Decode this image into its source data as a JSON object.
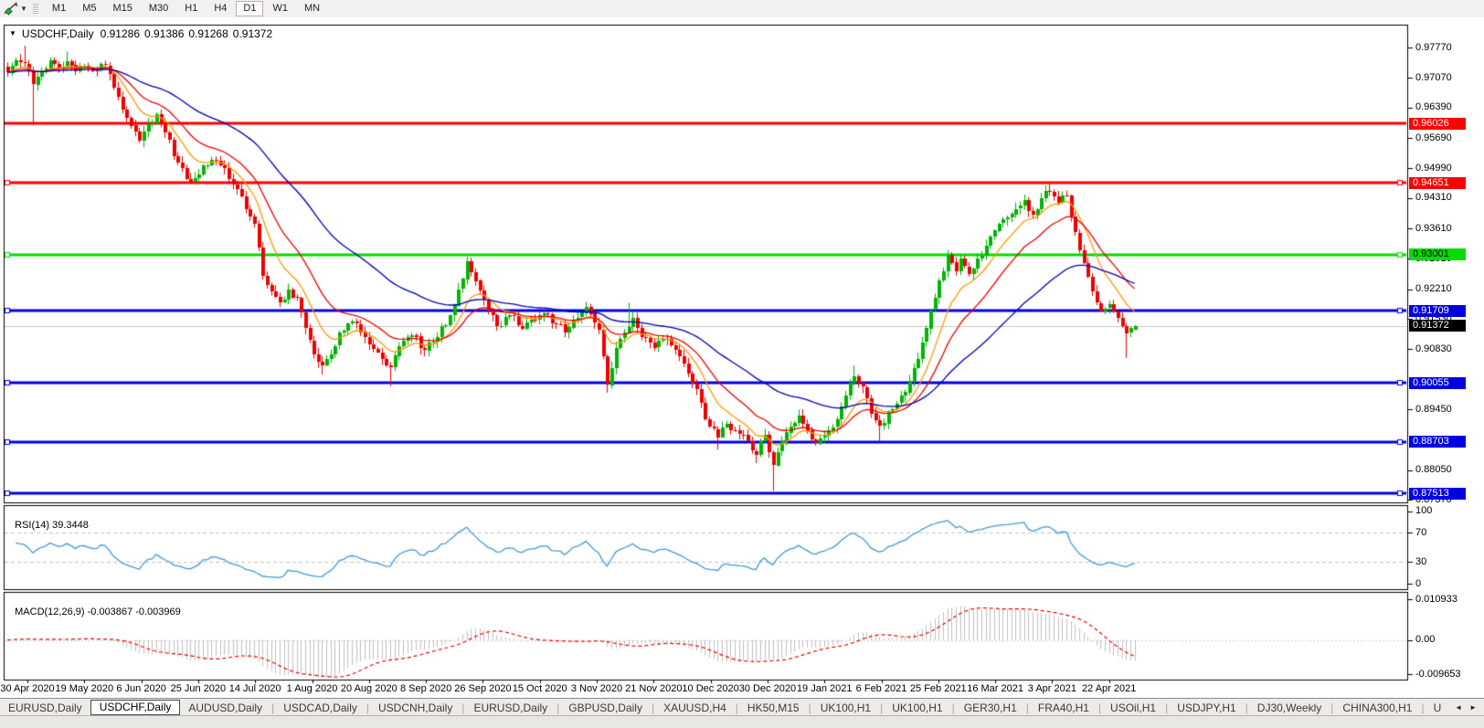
{
  "toolbar": {
    "dropdown_caret": "▼",
    "timeframes": [
      {
        "label": "M1",
        "active": false
      },
      {
        "label": "M5",
        "active": false
      },
      {
        "label": "M15",
        "active": false
      },
      {
        "label": "M30",
        "active": false
      },
      {
        "label": "H1",
        "active": false
      },
      {
        "label": "H4",
        "active": false
      },
      {
        "label": "D1",
        "active": true
      },
      {
        "label": "W1",
        "active": false
      },
      {
        "label": "MN",
        "active": false
      }
    ]
  },
  "chart": {
    "collapse_icon": "▼",
    "symbol_title": "USDCHF,Daily",
    "ohlc": {
      "open": "0.91286",
      "high": "0.91386",
      "low": "0.91268",
      "close": "0.91372"
    }
  },
  "chart_data": {
    "type": "candlestick-ohlc",
    "symbol": "USDCHF",
    "timeframe": "Daily",
    "visible_range": {
      "price_top": 0.98295,
      "price_bottom": 0.8733
    },
    "candle_count": 266,
    "colors": {
      "up": "#00B400",
      "down": "#EE0000",
      "rsi_line": "#3E9ADD",
      "macd_hist": "#C0C0C0",
      "macd_signal": "#EE0000",
      "current_line": "#C8C8C8",
      "grid_dash": "#C4C4C4"
    },
    "moving_averages": [
      {
        "period": 10,
        "method": "EMA",
        "color": "#FF9900"
      },
      {
        "period": 20,
        "method": "EMA",
        "color": "#EE0000"
      },
      {
        "period": 50,
        "method": "EMA",
        "color": "#0000B4"
      }
    ],
    "levels": [
      {
        "label": "0.96026",
        "price": 0.96026,
        "color": "#FF0000",
        "text": "#FFFFFF",
        "handles": false
      },
      {
        "label": "0.94651",
        "price": 0.94651,
        "color": "#FF0000",
        "text": "#FFFFFF",
        "handles": true
      },
      {
        "label": "0.93001",
        "price": 0.93001,
        "color": "#00DD00",
        "text": "#000000",
        "handles": true
      },
      {
        "label": "0.91709",
        "price": 0.91709,
        "color": "#0000E0",
        "text": "#FFFFFF",
        "handles": true
      },
      {
        "label": "0.90055",
        "price": 0.90055,
        "color": "#0000E0",
        "text": "#FFFFFF",
        "handles": true
      },
      {
        "label": "0.88703",
        "price": 0.88703,
        "color": "#0000E0",
        "text": "#FFFFFF",
        "handles": true
      },
      {
        "label": "0.87513",
        "price": 0.87513,
        "color": "#0000E0",
        "text": "#FFFFFF",
        "handles": true
      }
    ],
    "current_price": {
      "value": 0.91372,
      "label": "0.91372",
      "badge_bg": "#000000",
      "badge_fg": "#FFFFFF"
    },
    "price_axis_ticks": [
      "0.97770",
      "0.97070",
      "0.96390",
      "0.95690",
      "0.94990",
      "0.94310",
      "0.93610",
      "0.92910",
      "0.92210",
      "0.91530",
      "0.90830",
      "0.89450",
      "0.88050",
      "0.87370"
    ],
    "date_axis_labels": [
      "30 Apr 2020",
      "19 May 2020",
      "6 Jun 2020",
      "25 Jun 2020",
      "14 Jul 2020",
      "1 Aug 2020",
      "20 Aug 2020",
      "8 Sep 2020",
      "26 Sep 2020",
      "15 Oct 2020",
      "3 Nov 2020",
      "21 Nov 2020",
      "10 Dec 2020",
      "30 Dec 2020",
      "19 Jan 2021",
      "6 Feb 2021",
      "25 Feb 2021",
      "16 Mar 2021",
      "3 Apr 2021",
      "22 Apr 2021"
    ],
    "last_candle": {
      "open": 0.91286,
      "high": 0.91386,
      "low": 0.91268,
      "close": 0.91372
    },
    "close_anchors": [
      [
        0,
        0.972
      ],
      [
        2,
        0.9748
      ],
      [
        4,
        0.974
      ],
      [
        6,
        0.9692
      ],
      [
        8,
        0.9722
      ],
      [
        10,
        0.9748
      ],
      [
        12,
        0.973
      ],
      [
        14,
        0.9746
      ],
      [
        16,
        0.9722
      ],
      [
        18,
        0.9736
      ],
      [
        20,
        0.9724
      ],
      [
        23,
        0.9736
      ],
      [
        26,
        0.9663
      ],
      [
        28,
        0.9616
      ],
      [
        31,
        0.9562
      ],
      [
        33,
        0.9601
      ],
      [
        35,
        0.9624
      ],
      [
        37,
        0.9581
      ],
      [
        40,
        0.9512
      ],
      [
        43,
        0.9469
      ],
      [
        46,
        0.9506
      ],
      [
        48,
        0.9518
      ],
      [
        51,
        0.9499
      ],
      [
        54,
        0.9451
      ],
      [
        56,
        0.9405
      ],
      [
        58,
        0.9371
      ],
      [
        60,
        0.9251
      ],
      [
        62,
        0.9216
      ],
      [
        64,
        0.9191
      ],
      [
        66,
        0.9221
      ],
      [
        68,
        0.9201
      ],
      [
        70,
        0.9131
      ],
      [
        72,
        0.9071
      ],
      [
        74,
        0.9046
      ],
      [
        76,
        0.9071
      ],
      [
        78,
        0.9121
      ],
      [
        81,
        0.9146
      ],
      [
        84,
        0.9111
      ],
      [
        87,
        0.9076
      ],
      [
        90,
        0.9041
      ],
      [
        92,
        0.9091
      ],
      [
        95,
        0.9116
      ],
      [
        98,
        0.9081
      ],
      [
        101,
        0.9111
      ],
      [
        104,
        0.9161
      ],
      [
        106,
        0.9221
      ],
      [
        108,
        0.9286
      ],
      [
        110,
        0.9241
      ],
      [
        113,
        0.9171
      ],
      [
        115,
        0.9136
      ],
      [
        118,
        0.9161
      ],
      [
        121,
        0.9131
      ],
      [
        123,
        0.9151
      ],
      [
        126,
        0.9166
      ],
      [
        129,
        0.9141
      ],
      [
        131,
        0.9121
      ],
      [
        134,
        0.9156
      ],
      [
        136,
        0.9181
      ],
      [
        139,
        0.9128
      ],
      [
        141,
        0.9001
      ],
      [
        143,
        0.9086
      ],
      [
        145,
        0.9121
      ],
      [
        147,
        0.9156
      ],
      [
        149,
        0.9111
      ],
      [
        152,
        0.9086
      ],
      [
        155,
        0.9106
      ],
      [
        157,
        0.9081
      ],
      [
        159,
        0.9051
      ],
      [
        162,
        0.8991
      ],
      [
        164,
        0.8921
      ],
      [
        167,
        0.8881
      ],
      [
        169,
        0.8911
      ],
      [
        171,
        0.8896
      ],
      [
        174,
        0.8871
      ],
      [
        176,
        0.8841
      ],
      [
        178,
        0.8886
      ],
      [
        180,
        0.8816
      ],
      [
        182,
        0.8871
      ],
      [
        184,
        0.8906
      ],
      [
        186,
        0.8931
      ],
      [
        188,
        0.8896
      ],
      [
        190,
        0.8866
      ],
      [
        193,
        0.8896
      ],
      [
        195,
        0.8921
      ],
      [
        197,
        0.8976
      ],
      [
        199,
        0.9021
      ],
      [
        201,
        0.8996
      ],
      [
        203,
        0.8936
      ],
      [
        205,
        0.8906
      ],
      [
        208,
        0.8946
      ],
      [
        210,
        0.8976
      ],
      [
        212,
        0.9011
      ],
      [
        214,
        0.9061
      ],
      [
        216,
        0.9131
      ],
      [
        218,
        0.9201
      ],
      [
        221,
        0.9301
      ],
      [
        223,
        0.9261
      ],
      [
        224,
        0.9291
      ],
      [
        226,
        0.9256
      ],
      [
        228,
        0.9291
      ],
      [
        230,
        0.9321
      ],
      [
        232,
        0.9356
      ],
      [
        234,
        0.9381
      ],
      [
        237,
        0.9406
      ],
      [
        239,
        0.9426
      ],
      [
        241,
        0.9391
      ],
      [
        243,
        0.9431
      ],
      [
        245,
        0.9446
      ],
      [
        247,
        0.9421
      ],
      [
        249,
        0.9436
      ],
      [
        251,
        0.9351
      ],
      [
        253,
        0.9281
      ],
      [
        255,
        0.9216
      ],
      [
        257,
        0.9171
      ],
      [
        259,
        0.9186
      ],
      [
        261,
        0.9156
      ],
      [
        263,
        0.9121
      ],
      [
        264,
        0.9131
      ],
      [
        265,
        0.91372
      ]
    ],
    "wick_overrides": [
      [
        4,
        "h",
        0.9781
      ],
      [
        6,
        "l",
        0.9598
      ],
      [
        14,
        "h",
        0.9768
      ],
      [
        43,
        "l",
        0.9463
      ],
      [
        48,
        "h",
        0.9526
      ],
      [
        74,
        "l",
        0.9025
      ],
      [
        90,
        "l",
        0.8998
      ],
      [
        108,
        "h",
        0.9296
      ],
      [
        136,
        "h",
        0.9192
      ],
      [
        141,
        "l",
        0.8983
      ],
      [
        146,
        "h",
        0.919
      ],
      [
        167,
        "l",
        0.8852
      ],
      [
        176,
        "l",
        0.8821
      ],
      [
        180,
        "l",
        0.8757
      ],
      [
        199,
        "h",
        0.9046
      ],
      [
        205,
        "l",
        0.8871
      ],
      [
        221,
        "h",
        0.9311
      ],
      [
        245,
        "h",
        0.9466
      ],
      [
        249,
        "h",
        0.9448
      ],
      [
        263,
        "l",
        0.9063
      ]
    ],
    "rsi": {
      "label": "RSI(14)",
      "value": "39.3448",
      "period": 14,
      "axis_ticks": [
        {
          "label": "100",
          "value": 100
        },
        {
          "label": "70",
          "value": 70
        },
        {
          "label": "30",
          "value": 30
        },
        {
          "label": "0",
          "value": 0
        }
      ]
    },
    "macd": {
      "label": "MACD(12,26,9)",
      "macd_value": "-0.003867",
      "signal_value": "-0.003969",
      "fast": 12,
      "slow": 26,
      "signal": 9,
      "axis_ticks": [
        {
          "label": "0.010933",
          "value": 0.010933
        },
        {
          "label": "0.00",
          "value": 0
        },
        {
          "label": "-0.009653",
          "value": -0.009653
        }
      ]
    }
  },
  "tabs": {
    "scroll_left": "◄",
    "scroll_right": "►",
    "items": [
      {
        "label": "EURUSD,Daily",
        "active": false
      },
      {
        "label": "USDCHF,Daily",
        "active": true
      },
      {
        "label": "AUDUSD,Daily",
        "active": false
      },
      {
        "label": "USDCAD,Daily",
        "active": false
      },
      {
        "label": "USDCNH,Daily",
        "active": false
      },
      {
        "label": "EURUSD,Daily",
        "active": false
      },
      {
        "label": "GBPUSD,Daily",
        "active": false
      },
      {
        "label": "XAUUSD,H4",
        "active": false
      },
      {
        "label": "HK50,M15",
        "active": false
      },
      {
        "label": "UK100,H1",
        "active": false
      },
      {
        "label": "UK100,H1",
        "active": false
      },
      {
        "label": "GER30,H1",
        "active": false
      },
      {
        "label": "FRA40,H1",
        "active": false
      },
      {
        "label": "USOil,H1",
        "active": false
      },
      {
        "label": "USDJPY,H1",
        "active": false
      },
      {
        "label": "DJ30,Weekly",
        "active": false
      },
      {
        "label": "CHINA300,H1",
        "active": false
      },
      {
        "label": "U",
        "active": false
      }
    ]
  }
}
